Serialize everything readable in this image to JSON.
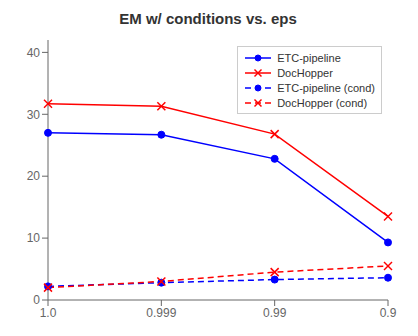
{
  "chart_data": {
    "type": "line",
    "title": "EM w/ conditions vs. eps",
    "categories": [
      "1.0",
      "0.999",
      "0.99",
      "0.9"
    ],
    "series": [
      {
        "name": "ETC-pipeline",
        "color": "blue",
        "values": [
          27.0,
          26.7,
          22.8,
          9.3
        ],
        "marker": "circle",
        "line_style": "solid"
      },
      {
        "name": "DocHopper",
        "color": "red",
        "values": [
          31.7,
          31.3,
          26.8,
          13.5
        ],
        "marker": "x",
        "line_style": "solid"
      },
      {
        "name": "ETC-pipeline (cond)",
        "color": "blue",
        "values": [
          2.2,
          2.8,
          3.3,
          3.6
        ],
        "marker": "circle",
        "line_style": "dashed"
      },
      {
        "name": "DocHopper (cond)",
        "color": "red",
        "values": [
          2.0,
          3.0,
          4.5,
          5.5
        ],
        "marker": "x",
        "line_style": "dashed"
      }
    ],
    "ylim": [
      0,
      42
    ],
    "yticks": [
      0,
      10,
      20,
      30,
      40
    ],
    "grid": false,
    "legend": "upper right"
  }
}
